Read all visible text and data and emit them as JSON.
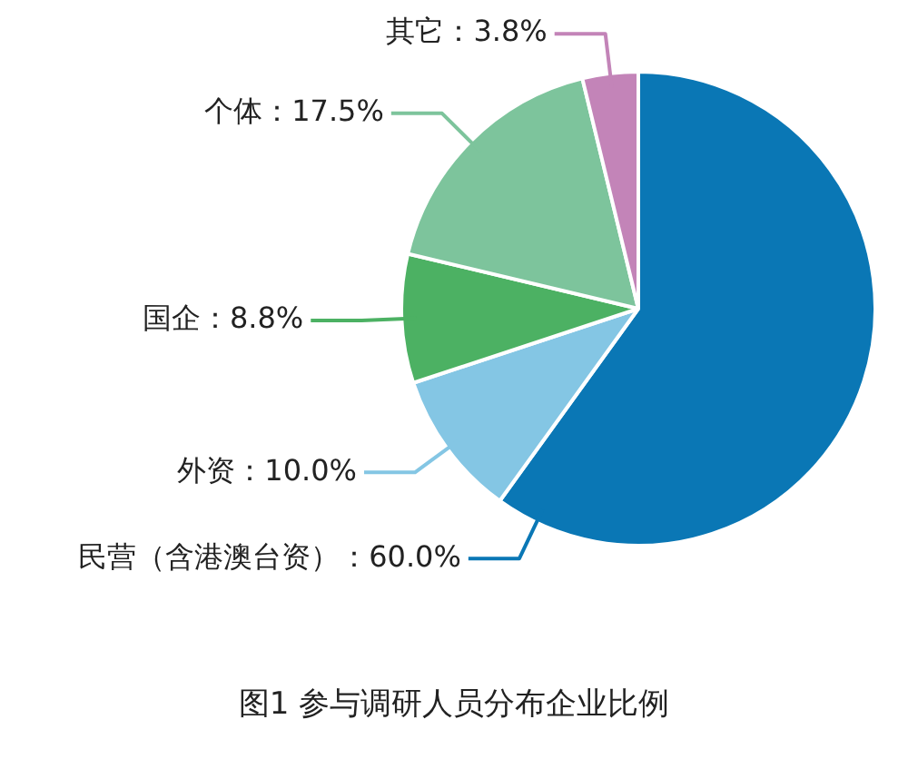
{
  "chart_data": {
    "type": "pie",
    "title": "图1 参与调研人员分布企业比例",
    "categories": [
      "民营（含港澳台资）",
      "外资",
      "国企",
      "个体",
      "其它"
    ],
    "values": [
      60.0,
      10.0,
      8.8,
      17.5,
      3.8
    ],
    "value_labels": [
      "60.0%",
      "10.0%",
      "8.8%",
      "17.5%",
      "3.8%"
    ],
    "colors": [
      "#0a77b5",
      "#84c6e4",
      "#4cb163",
      "#7dc49c",
      "#c384b8"
    ],
    "legend": false
  }
}
